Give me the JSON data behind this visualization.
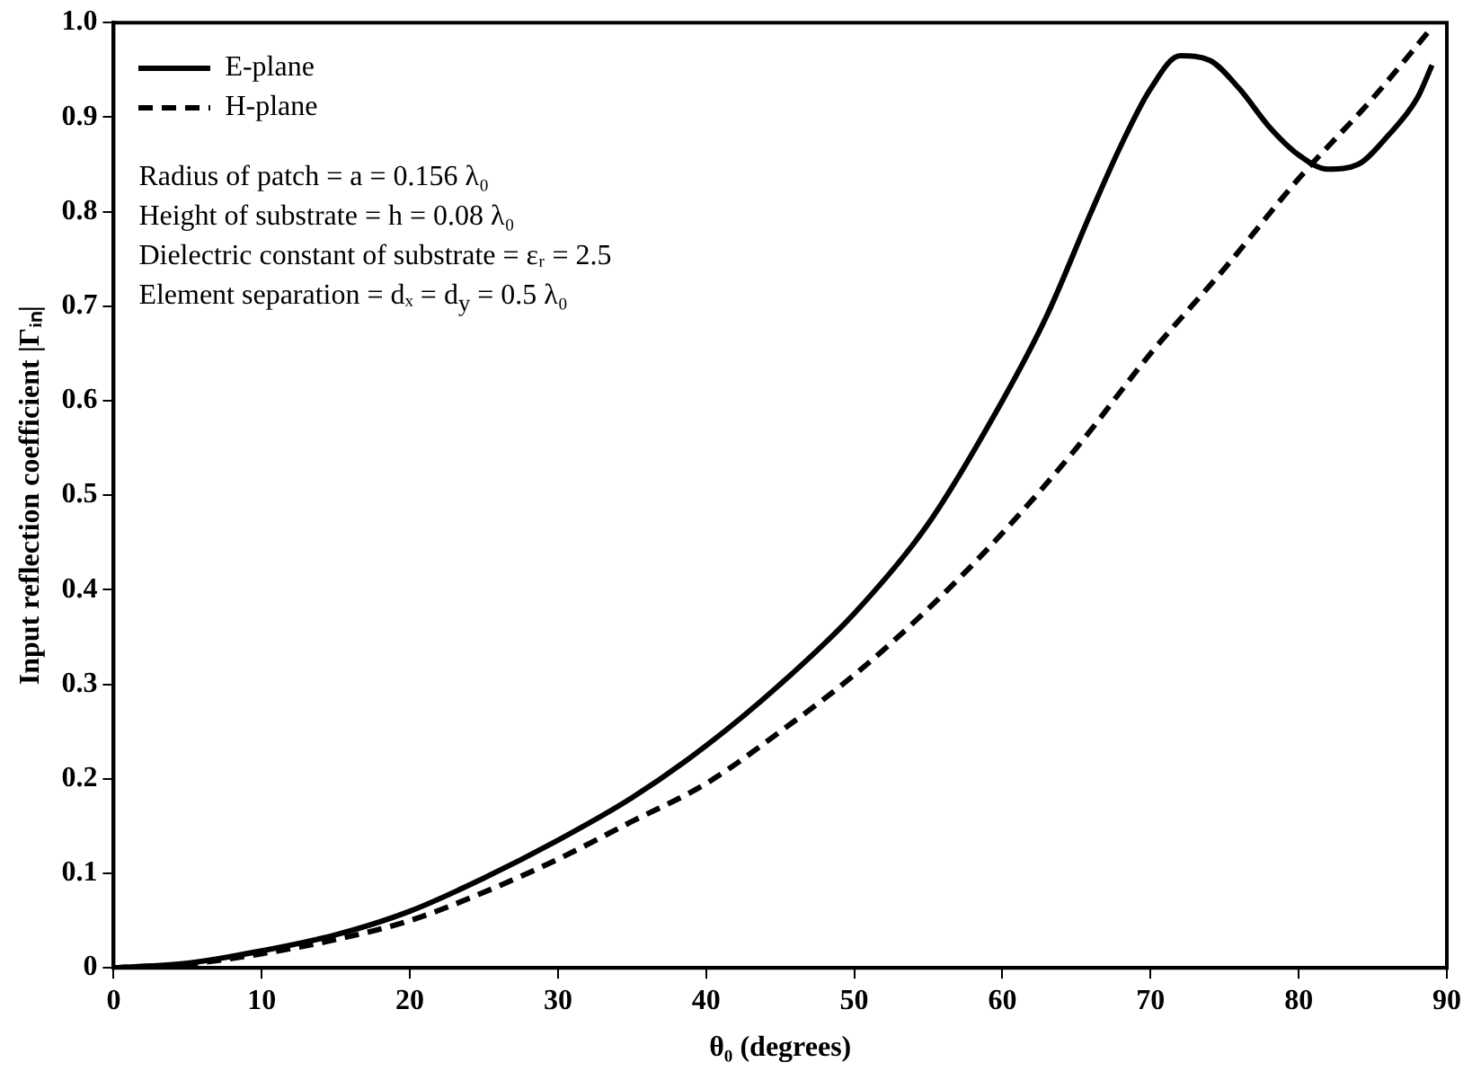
{
  "chart_data": {
    "type": "line",
    "xlabel": "θ₀ (degrees)",
    "ylabel": "Input reflection coefficient |Γᵢₙ|",
    "xlim": [
      0,
      90
    ],
    "xticks": [
      0,
      10,
      20,
      30,
      40,
      50,
      60,
      70,
      80,
      90
    ],
    "ylim": [
      0,
      1
    ],
    "yticks": [
      0,
      {
        "value": 0.1,
        "label": "0.1"
      },
      {
        "value": 0.2,
        "label": "0.2"
      },
      {
        "value": 0.3,
        "label": "0.3"
      },
      {
        "value": 0.4,
        "label": "0.4"
      },
      {
        "value": 0.5,
        "label": "0.5"
      },
      {
        "value": 0.6,
        "label": "0.6"
      },
      {
        "value": 0.7,
        "label": "0.7"
      },
      {
        "value": 0.8,
        "label": "0.8"
      },
      {
        "value": 0.9,
        "label": "0.9"
      },
      {
        "value": 1,
        "label": "1.0"
      }
    ],
    "grid": false,
    "legend": "top left",
    "marker": "none",
    "series": [
      {
        "name": "E-plane",
        "color": "#000000",
        "line_style": "solid",
        "x": [
          0,
          5,
          10,
          15,
          20,
          25,
          30,
          35,
          40,
          45,
          50,
          55,
          60,
          63,
          66,
          68,
          70,
          72,
          74,
          76,
          78,
          80,
          82,
          84,
          86,
          88,
          89
        ],
        "values": [
          0,
          0.005,
          0.018,
          0.035,
          0.06,
          0.095,
          0.135,
          0.18,
          0.235,
          0.3,
          0.375,
          0.47,
          0.6,
          0.69,
          0.8,
          0.87,
          0.93,
          0.965,
          0.96,
          0.93,
          0.89,
          0.86,
          0.845,
          0.85,
          0.88,
          0.92,
          0.955
        ]
      },
      {
        "name": "H-plane",
        "color": "#000000",
        "line_style": "dashed",
        "x": [
          0,
          5,
          10,
          15,
          20,
          25,
          30,
          35,
          40,
          45,
          50,
          55,
          60,
          65,
          70,
          75,
          80,
          85,
          89
        ],
        "values": [
          0,
          0.004,
          0.015,
          0.03,
          0.05,
          0.08,
          0.115,
          0.155,
          0.195,
          0.25,
          0.31,
          0.38,
          0.46,
          0.55,
          0.65,
          0.74,
          0.835,
          0.92,
          0.995
        ]
      }
    ],
    "annotations": [
      "Radius of patch = a = 0.156 λ₀",
      "Height of substrate = h = 0.08 λ₀",
      "Dielectric constant of substrate = εᵣ = 2.5",
      "Element separation = dₓ = d$_{y}$ = 0.5 λ₀"
    ]
  }
}
